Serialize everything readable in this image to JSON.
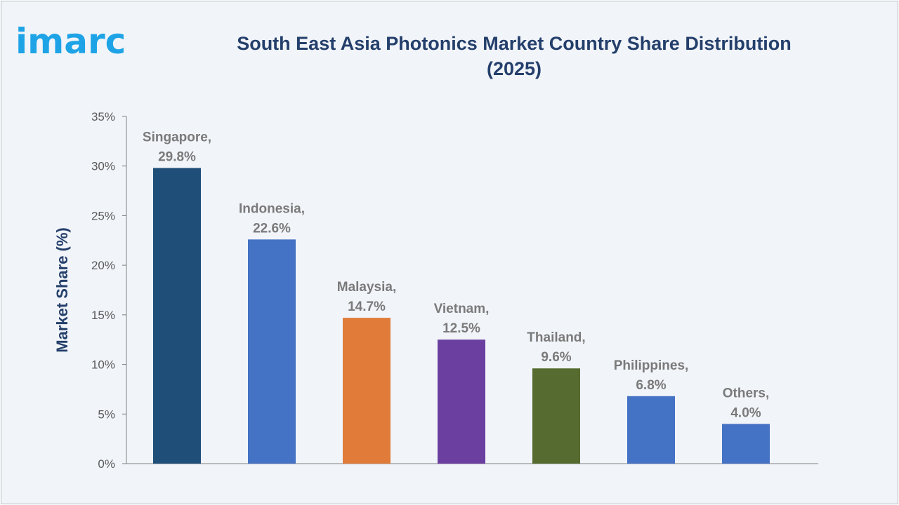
{
  "brand": {
    "logo_text": "imarc"
  },
  "title": {
    "line1": "South East Asia Photonics Market Country Share Distribution",
    "line2": "(2025)"
  },
  "colors": {
    "brand": "#1ea4e6",
    "title": "#243f6b",
    "data_label": "#7a7a7a"
  },
  "chart_data": {
    "type": "bar",
    "title": "South East Asia Photonics Market Country Share Distribution (2025)",
    "xlabel": "",
    "ylabel": "Market Share (%)",
    "ylim": [
      0,
      35
    ],
    "yticks": [
      0,
      5,
      10,
      15,
      20,
      25,
      30,
      35
    ],
    "ytick_labels": [
      "0%",
      "5%",
      "10%",
      "15%",
      "20%",
      "25%",
      "30%",
      "35%"
    ],
    "grid": false,
    "legend": "none",
    "categories": [
      "Singapore",
      "Indonesia",
      "Malaysia",
      "Vietnam",
      "Thailand",
      "Philippines",
      "Others"
    ],
    "values": [
      29.8,
      22.6,
      14.7,
      12.5,
      9.6,
      6.8,
      4.0
    ],
    "data_labels": [
      [
        "Singapore,",
        "29.8%"
      ],
      [
        "Indonesia,",
        "22.6%"
      ],
      [
        "Malaysia,",
        "14.7%"
      ],
      [
        "Vietnam,",
        "12.5%"
      ],
      [
        "Thailand,",
        "9.6%"
      ],
      [
        "Philippines,",
        "6.8%"
      ],
      [
        "Others,",
        "4.0%"
      ]
    ],
    "bar_colors": [
      "#1f4e79",
      "#4472c4",
      "#e07b39",
      "#6b3fa0",
      "#556b2f",
      "#4472c4",
      "#4472c4"
    ]
  }
}
